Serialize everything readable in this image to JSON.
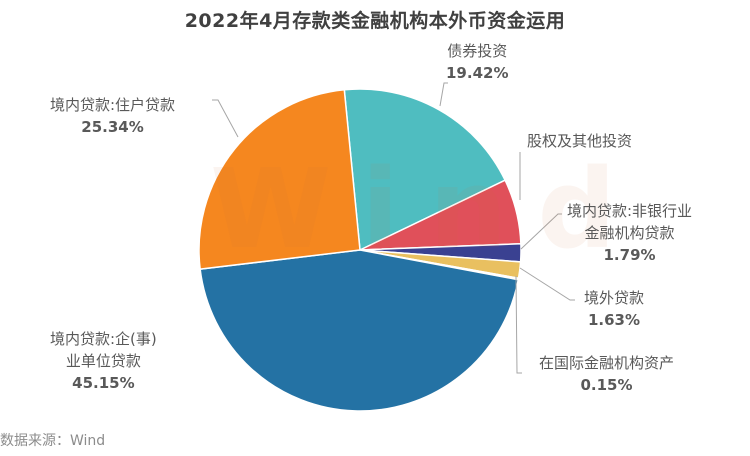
{
  "title": "2022年4月存款类金融机构本外币资金运用",
  "source": "数据来源：Wind",
  "watermark": "Wind",
  "chart_data": {
    "type": "pie",
    "title": "2022年4月存款类金融机构本外币资金运用",
    "start_angle_deg": -5.6,
    "direction": "clockwise",
    "center": [
      360,
      250
    ],
    "radius": 161,
    "slices": [
      {
        "label": "债券投资",
        "value": 19.42,
        "value_label": "19.42%",
        "color": "#4FBDC0"
      },
      {
        "label": "股权及其他投资",
        "value": 6.52,
        "value_label": "",
        "color": "#E0505A"
      },
      {
        "label": "境内贷款:非银行业金融机构贷款",
        "value": 1.79,
        "value_label": "1.79%",
        "color": "#3A4191"
      },
      {
        "label": "境外贷款",
        "value": 1.63,
        "value_label": "1.63%",
        "color": "#E9C060"
      },
      {
        "label": "在国际金融机构资产",
        "value": 0.15,
        "value_label": "0.15%",
        "color": "#A9D3E8"
      },
      {
        "label": "境内贷款:企(事)业单位贷款",
        "value": 45.15,
        "value_label": "45.15%",
        "color": "#2472A4"
      },
      {
        "label": "境内贷款:住户贷款",
        "value": 25.34,
        "value_label": "25.34%",
        "color": "#F5871F"
      }
    ],
    "legend": "none (data labels)"
  },
  "labels": {
    "bond": {
      "line1": "债券投资",
      "pct": "19.42%"
    },
    "equity": {
      "line1": "股权及其他投资"
    },
    "nonbank": {
      "line1": "境内贷款:非银行业",
      "line2": "金融机构贷款",
      "pct": "1.79%"
    },
    "overseas": {
      "line1": "境外贷款",
      "pct": "1.63%"
    },
    "intl": {
      "line1": "在国际金融机构资产",
      "pct": "0.15%"
    },
    "corp": {
      "line1": "境内贷款:企(事)",
      "line2": "业单位贷款",
      "pct": "45.15%"
    },
    "household": {
      "line1": "境内贷款:住户贷款",
      "pct": "25.34%"
    }
  }
}
